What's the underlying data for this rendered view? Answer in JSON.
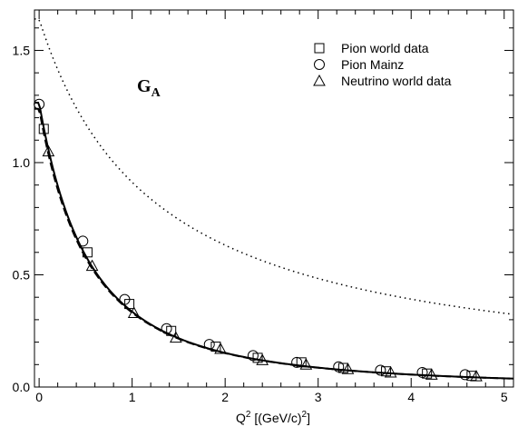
{
  "chart_data": {
    "type": "scatter",
    "annotation": {
      "main": "G",
      "sub": "A"
    },
    "xlabel": {
      "main": "Q",
      "sup1": "2",
      "rest": " [(GeV/c)",
      "sup2": "2",
      "end": "]"
    },
    "ylabel": "",
    "xlim": [
      -0.05,
      5.1
    ],
    "ylim": [
      0,
      1.68
    ],
    "x_ticks": [
      "0",
      "1",
      "2",
      "3",
      "4",
      "5"
    ],
    "y_ticks": [
      "0.0",
      "0.5",
      "1.0",
      "1.5"
    ],
    "legend_position": "top-right",
    "series": [
      {
        "name": "Pion world data",
        "marker": "square",
        "x": [
          0.05,
          0.52,
          0.97,
          1.42,
          1.9,
          2.35,
          2.82,
          3.27,
          3.73,
          4.17,
          4.65
        ],
        "y": [
          1.15,
          0.6,
          0.37,
          0.25,
          0.18,
          0.13,
          0.11,
          0.085,
          0.07,
          0.06,
          0.05
        ]
      },
      {
        "name": "Pion Mainz",
        "marker": "circle",
        "x": [
          0.0,
          0.47,
          0.92,
          1.37,
          1.83,
          2.3,
          2.77,
          3.22,
          3.67,
          4.12,
          4.58
        ],
        "y": [
          1.26,
          0.65,
          0.39,
          0.26,
          0.19,
          0.14,
          0.11,
          0.09,
          0.075,
          0.065,
          0.055
        ]
      },
      {
        "name": "Neutrino world data",
        "marker": "triangle",
        "x": [
          0.1,
          0.57,
          1.02,
          1.47,
          1.95,
          2.4,
          2.87,
          3.32,
          3.78,
          4.22,
          4.7
        ],
        "y": [
          1.05,
          0.54,
          0.33,
          0.22,
          0.17,
          0.12,
          0.1,
          0.08,
          0.065,
          0.055,
          0.048
        ]
      }
    ],
    "curves": [
      {
        "style": "solid",
        "form": "dipole",
        "g0": 1.267,
        "mass": 1.03
      },
      {
        "style": "dashed",
        "form": "dipole",
        "g0": 1.24,
        "mass": 1.035
      },
      {
        "style": "dotted",
        "form": "monopole",
        "g0": 1.64,
        "mass": 1.12
      }
    ]
  }
}
